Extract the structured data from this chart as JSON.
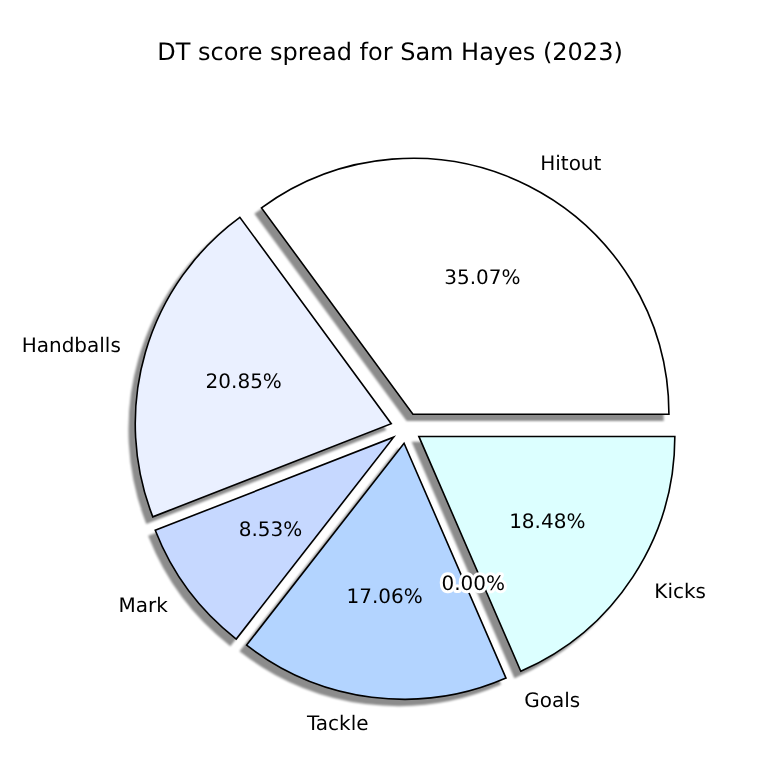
{
  "chart_data": {
    "type": "pie",
    "title": "DT score spread for Sam Hayes (2023)",
    "categories": [
      "Hitout",
      "Handballs",
      "Mark",
      "Tackle",
      "Goals",
      "Kicks"
    ],
    "values": [
      35.07,
      20.85,
      8.53,
      17.06,
      0.0,
      18.48
    ],
    "value_labels": [
      "35.07%",
      "20.85%",
      "8.53%",
      "17.06%",
      "0.00%",
      "18.48%"
    ],
    "colors": [
      "#ffffff",
      "#eaf0ff",
      "#c6d8ff",
      "#b3d4ff",
      null,
      "#dcffff"
    ]
  }
}
